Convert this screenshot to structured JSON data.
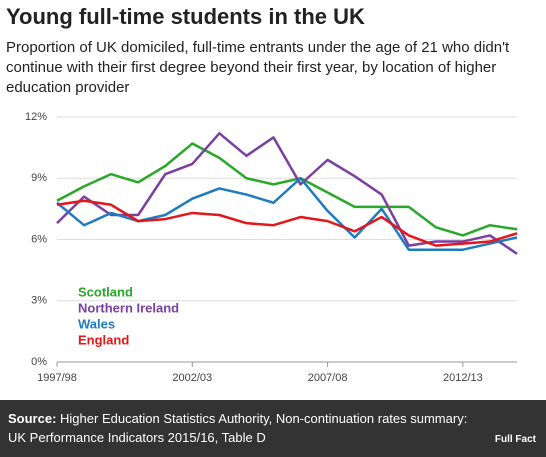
{
  "chart_data": {
    "type": "line",
    "title": "Young full-time students in the UK",
    "subtitle": "Proportion of UK domiciled, full-time entrants under the age of 21 who didn't continue with their first degree beyond their first year, by location of higher education provider",
    "categories": [
      "1997/98",
      null,
      null,
      null,
      null,
      "2002/03",
      null,
      null,
      null,
      null,
      "2007/08",
      null,
      null,
      null,
      null,
      "2012/13",
      null,
      null
    ],
    "series": [
      {
        "name": "Scotland",
        "color": "#2aa82a",
        "values": [
          7.9,
          8.6,
          9.2,
          8.8,
          9.6,
          10.7,
          10.0,
          9.0,
          8.7,
          9.0,
          8.3,
          7.6,
          7.6,
          7.6,
          6.6,
          6.2,
          6.7,
          6.5
        ]
      },
      {
        "name": "Northern Ireland",
        "color": "#7b3fa0",
        "values": [
          6.8,
          8.1,
          7.2,
          7.2,
          9.2,
          9.7,
          11.2,
          10.1,
          11.0,
          8.7,
          9.9,
          9.1,
          8.2,
          5.7,
          5.9,
          5.9,
          6.2,
          5.3
        ]
      },
      {
        "name": "Wales",
        "color": "#1d7bc2",
        "values": [
          7.8,
          6.7,
          7.3,
          6.9,
          7.2,
          8.0,
          8.5,
          8.2,
          7.8,
          9.0,
          7.4,
          6.1,
          7.5,
          5.5,
          5.5,
          5.5,
          5.8,
          6.1
        ]
      },
      {
        "name": "England",
        "color": "#e3161b",
        "values": [
          7.7,
          7.9,
          7.7,
          6.9,
          7.0,
          7.3,
          7.2,
          6.8,
          6.7,
          7.1,
          6.9,
          6.4,
          7.1,
          6.2,
          5.7,
          5.8,
          5.9,
          6.3
        ]
      }
    ],
    "ylim": [
      0,
      12
    ],
    "yticks": [
      {
        "value": 0,
        "label": "0%"
      },
      {
        "value": 3,
        "label": "3%"
      },
      {
        "value": 6,
        "label": "6%"
      },
      {
        "value": 9,
        "label": "9%"
      },
      {
        "value": 12,
        "label": "12%"
      }
    ],
    "grid": true,
    "source_label": "Source:",
    "source": "Higher Education Statistics Authority, Non-continuation rates summary: UK Performance Indicators 2015/16, Table D",
    "logo": "Full Fact"
  }
}
